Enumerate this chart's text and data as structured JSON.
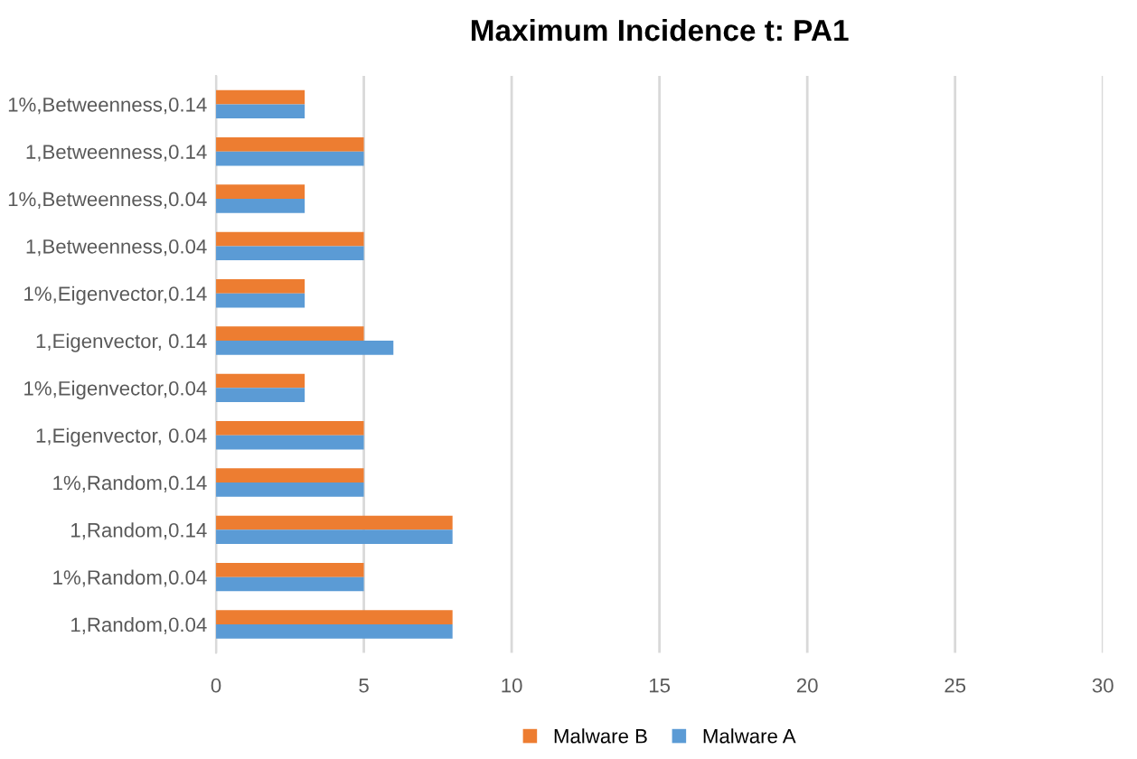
{
  "chart_data": {
    "type": "bar",
    "orientation": "horizontal",
    "title": "Maximum Incidence t: PA1",
    "categories": [
      "1%,Betweenness,0.14",
      "1,Betweenness,0.14",
      "1%,Betweenness,0.04",
      "1,Betweenness,0.04",
      "1%,Eigenvector,0.14",
      "1,Eigenvector, 0.14",
      "1%,Eigenvector,0.04",
      "1,Eigenvector, 0.04",
      "1%,Random,0.14",
      "1,Random,0.14",
      "1%,Random,0.04",
      "1,Random,0.04"
    ],
    "series": [
      {
        "name": "Malware B",
        "color": "#ed7d31",
        "values": [
          3,
          5,
          3,
          5,
          3,
          5,
          3,
          5,
          5,
          8,
          5,
          8
        ]
      },
      {
        "name": "Malware A",
        "color": "#5b9bd5",
        "values": [
          3,
          5,
          3,
          5,
          3,
          6,
          3,
          5,
          5,
          8,
          5,
          8
        ]
      }
    ],
    "xlim": [
      0,
      30
    ],
    "xticks": [
      0,
      5,
      10,
      15,
      20,
      25,
      30
    ],
    "grid": "x",
    "legend": "bottom"
  }
}
